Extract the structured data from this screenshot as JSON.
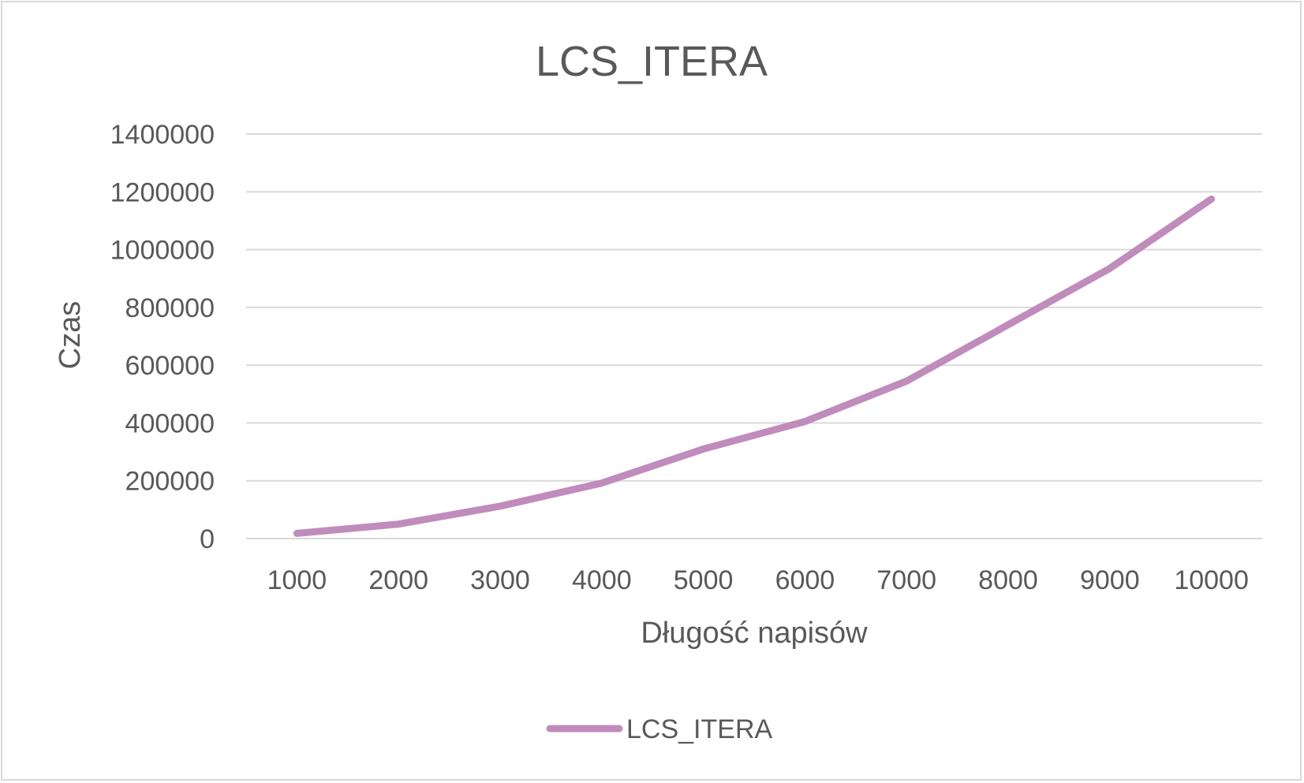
{
  "chart_data": {
    "type": "line",
    "title": "LCS_ITERA",
    "xlabel": "Długość napisów",
    "ylabel": "Czas",
    "categories": [
      "1000",
      "2000",
      "3000",
      "4000",
      "5000",
      "6000",
      "7000",
      "8000",
      "9000",
      "10000"
    ],
    "series": [
      {
        "name": "LCS_ITERA",
        "color": "#c08cbc",
        "values": [
          18000,
          50000,
          112000,
          192000,
          310000,
          405000,
          545000,
          740000,
          935000,
          1175000
        ]
      }
    ],
    "ylim": [
      0,
      1400000
    ],
    "yticks": [
      "0",
      "200000",
      "400000",
      "600000",
      "800000",
      "1000000",
      "1200000",
      "1400000"
    ],
    "grid": true,
    "legend": "bottom"
  }
}
